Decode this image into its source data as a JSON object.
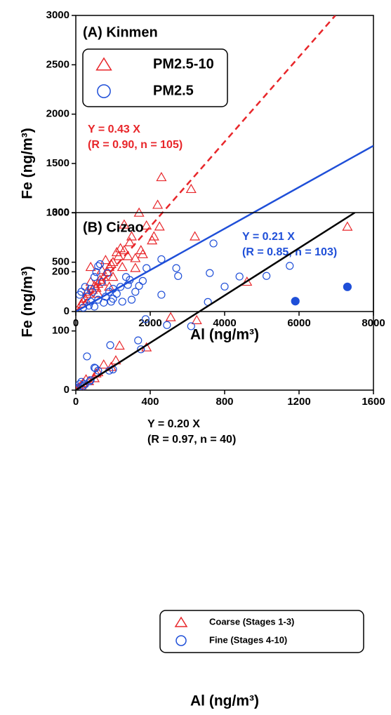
{
  "chart_data": [
    {
      "type": "scatter",
      "title": "(A) Kinmen",
      "x_label": "Al (ng/m³)",
      "y_label": "Fe (ng/m³)",
      "xlim": [
        0,
        8000
      ],
      "ylim": [
        0,
        3000
      ],
      "xticks": [
        0,
        2000,
        4000,
        6000,
        8000
      ],
      "yticks": [
        0,
        500,
        1000,
        1500,
        2000,
        2500,
        3000
      ],
      "legend": "upper left",
      "series": [
        {
          "name": "PM2.5-10",
          "color": "#e8262a",
          "marker": "triangle",
          "x": [
            3200,
            3100,
            2300,
            2200,
            2250,
            2100,
            2050,
            1900,
            1700,
            1750,
            1600,
            1500,
            1450,
            1300,
            1300,
            1200,
            1150,
            1100,
            1000,
            950,
            900,
            850,
            800,
            750,
            700,
            650,
            600,
            550,
            500,
            450,
            400,
            350,
            300,
            250,
            200,
            150,
            1400,
            1800,
            1600,
            900,
            700,
            600,
            400,
            1250,
            1000
          ],
          "y": [
            760,
            1240,
            1360,
            1080,
            860,
            760,
            720,
            870,
            1000,
            620,
            540,
            760,
            700,
            880,
            620,
            640,
            560,
            600,
            500,
            480,
            450,
            400,
            520,
            350,
            300,
            320,
            280,
            240,
            260,
            220,
            450,
            180,
            200,
            130,
            100,
            80,
            560,
            580,
            440,
            250,
            420,
            180,
            300,
            450,
            350
          ]
        },
        {
          "name": "PM2.5",
          "color": "#1f4fd8",
          "marker": "circle",
          "x": [
            3700,
            3600,
            2700,
            2750,
            2300,
            2300,
            1900,
            1800,
            1700,
            1600,
            1500,
            1450,
            1400,
            1350,
            1200,
            1100,
            1000,
            950,
            900,
            800,
            700,
            650,
            600,
            550,
            500,
            450,
            400,
            350,
            300,
            250,
            200,
            150,
            100,
            750,
            1000,
            850,
            1250,
            500,
            600,
            400
          ],
          "y": [
            690,
            390,
            440,
            360,
            530,
            170,
            440,
            310,
            260,
            200,
            120,
            320,
            270,
            350,
            250,
            180,
            130,
            100,
            200,
            150,
            300,
            480,
            460,
            400,
            350,
            200,
            100,
            60,
            150,
            250,
            40,
            200,
            170,
            90,
            230,
            390,
            100,
            50,
            120,
            230
          ]
        },
        {
          "color": "#1f4fd8",
          "marker": "filled-circle",
          "x": [
            5900,
            7300
          ],
          "y": [
            105,
            250
          ]
        }
      ],
      "fits": [
        {
          "slope": 0.43,
          "color": "#e8262a",
          "dash": true,
          "label": "Y = 0.43 X",
          "stats": "(R = 0.90, n = 105)"
        },
        {
          "slope": 0.21,
          "color": "#1f4fd8",
          "dash": false,
          "label": "Y = 0.21 X",
          "stats": "(R = 0.85, n = 103)"
        }
      ]
    },
    {
      "type": "scatter",
      "title": "(B) Cizao",
      "x_label": "Al (ng/m³)",
      "y_label": "Fe (ng/m³)",
      "xlim": [
        0,
        1600
      ],
      "ylim": [
        0,
        300
      ],
      "xticks": [
        0,
        400,
        800,
        1200,
        1600
      ],
      "yticks": [
        0,
        100,
        200,
        300
      ],
      "legend": "lower right",
      "series": [
        {
          "name": "Coarse (Stages 1-3)",
          "color": "#e8262a",
          "marker": "triangle",
          "x": [
            1460,
            920,
            650,
            510,
            380,
            235,
            215,
            150,
            110,
            100,
            70,
            55,
            40,
            30,
            20,
            10,
            190,
            120
          ],
          "y": [
            276,
            183,
            118,
            123,
            72,
            75,
            50,
            43,
            28,
            20,
            15,
            18,
            12,
            8,
            5,
            3,
            39,
            30
          ]
        },
        {
          "name": "Fine (Stages 4-10)",
          "color": "#1f4fd8",
          "marker": "circle",
          "x": [
            1150,
            1025,
            880,
            800,
            710,
            620,
            490,
            375,
            350,
            335,
            185,
            200,
            180,
            120,
            105,
            100,
            80,
            75,
            60,
            50,
            40,
            30,
            20,
            10,
            5
          ],
          "y": [
            210,
            193,
            192,
            175,
            149,
            108,
            110,
            120,
            69,
            84,
            76,
            35,
            33,
            33,
            37,
            38,
            17,
            15,
            57,
            10,
            7,
            14,
            10,
            4,
            2
          ]
        }
      ],
      "fits": [
        {
          "slope": 0.2,
          "color": "#000000",
          "dash": false,
          "label": "Y = 0.20 X",
          "stats": "(R = 0.97, n = 40)"
        }
      ]
    }
  ]
}
